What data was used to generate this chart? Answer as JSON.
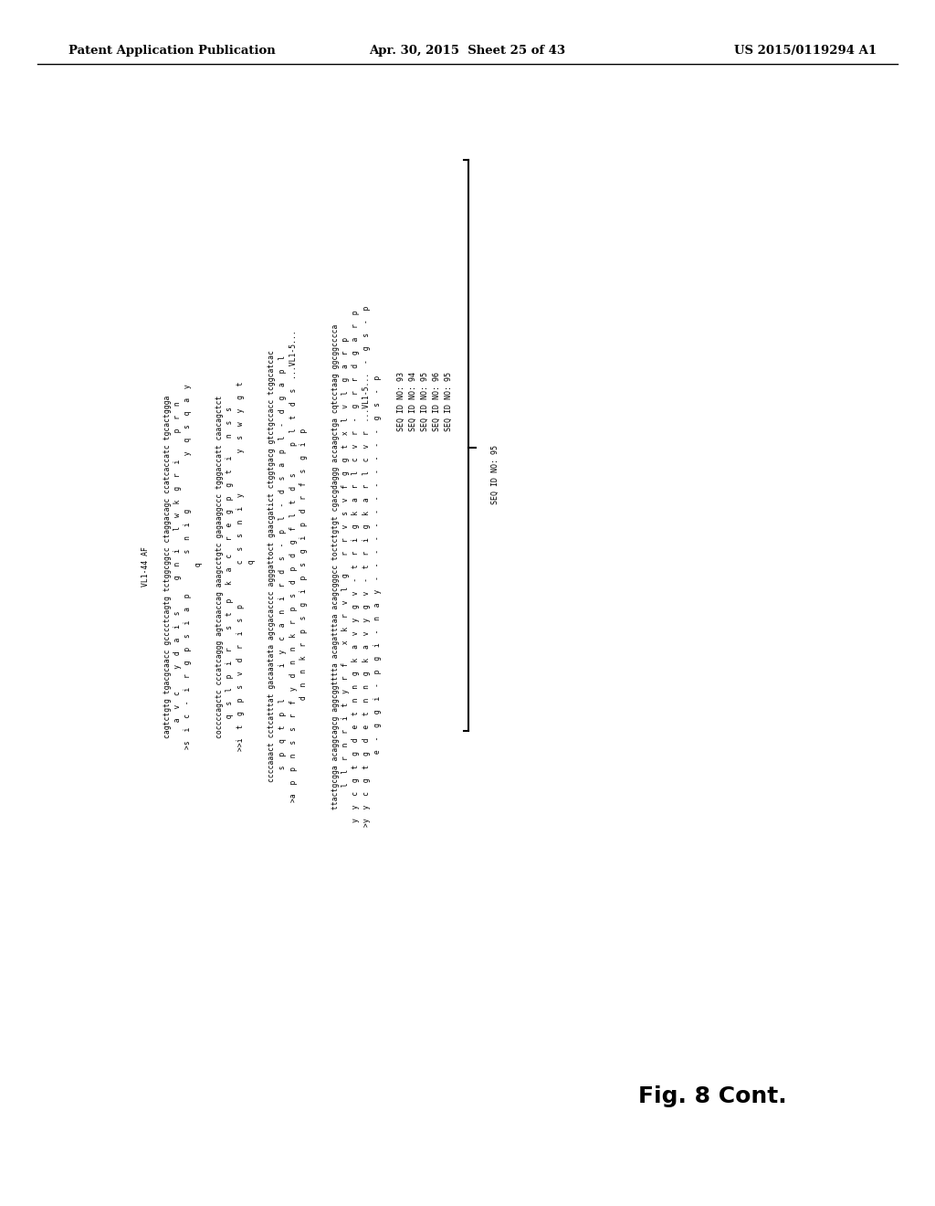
{
  "header_left": "Patent Application Publication",
  "header_mid": "Apr. 30, 2015  Sheet 25 of 43",
  "header_right": "US 2015/0119294 A1",
  "fig_label": "Fig. 8 Cont.",
  "background_color": "#ffffff",
  "text_color": "#000000",
  "seq_ids": [
    "SEQ ID NO: 93",
    "SEQ ID NO: 94",
    "SEQ ID NO: 95",
    "SEQ ID NO: 96",
    "SEQ ID NO: 95"
  ],
  "content_block": "VL1-44 AF\n\ncagtctgtg tgacgcaacc gcccctcagtg tctggcggcc ctaggacagc ccatcaccatc tgcactggga\n  a  v  c     y  d  a  i  s       g  n  i    l  w  k  g  r  i      p  r  n\n>s  i  c  -  i  r  g  p  s  i  a  p         s  n  i  g            y  q  s  q  a  y\n q\n\ncoccccagctc cccatcaggg agtcaaccag aaagcctgtc gagaaggccc tgggaccatt caacagctct\n  q  s  l  p  i  r    s  t  p   k  a  c   r  e  g  p  g  t  i    n  s  s\n>>i  t  g  p  s  v  d  r  i  s  p         c  s  s  n  i  y         y  s  w  y  g  t\n  q\n\nccccaaact cctcatttat gacaaatata agcgacacccc agggattoct gaacgatict ctggtgacg gtctgccacc tcggcatcac\n  s  p  q  t  p  l       i  y  c  a  n  i  r  d  s  -  p  l  -  d  s  a  p  l  -  d  g  a  p  l\n>a  p  p  n  s  s  r  f  y  d  n  n  k  r  p  s  d  p  d  g  f  l  t  d  s      p  l  t  d  s  ...VL1-5...\n d  n  n  k  r  p  s  g  i  p  s  g  i  p  d  r  f  s  g  i  p\n\n\nttactgcgga acaggcagcg aggcggtttta acagatttaa acagcgggcc toctctgtgt cgacgdaggg accaagctga cqtcctaag ggcggcccca\n  l  l  r  n  r  i  t  y  r  f    x  k  r  v  l  g    r  r  v  s  v  f  g  g  t  x  l  v  l  g  a  r  p\ny  y  c  g  t  g  d  e  t  n  n  g  k  a  v  y  g  v  -  t  r  i  g  k  a  r  l  c  v  r  -  g  r  r  d  g  a  r  p\n>y  y  c  g  t  g  d  e  t  n  n  g  k  a  v  y  g  v  -  t  r  i  g  k  a  r  l  c  v  r  ...VL1-5...  -  g  s  -  p\n e  -  g  g  i  -  p  g  i  -  n  a  y  -  -  -  -  -  -  -  -  -  -  -  -  g  s  -  p"
}
